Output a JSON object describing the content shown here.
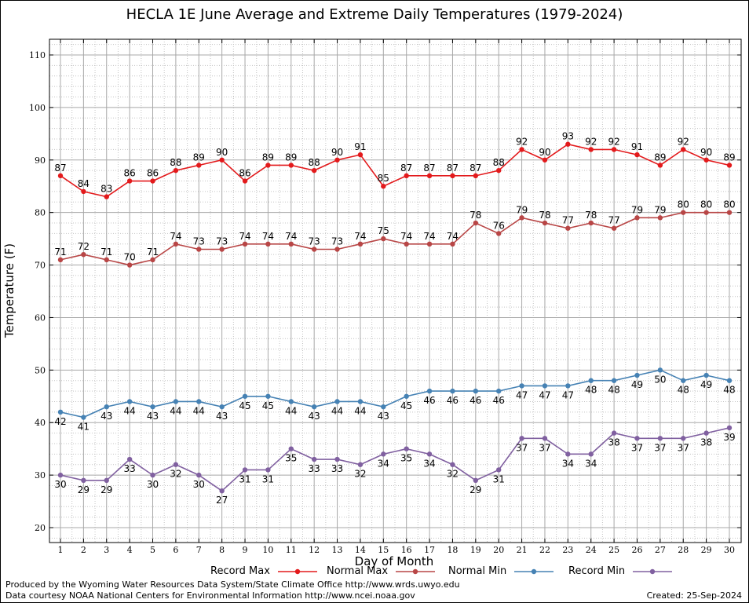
{
  "chart_data": {
    "type": "line",
    "title": "HECLA 1E June Average and Extreme Daily Temperatures (1979-2024)",
    "xlabel": "Day of Month",
    "ylabel": "Temperature (F)",
    "x": [
      1,
      2,
      3,
      4,
      5,
      6,
      7,
      8,
      9,
      10,
      11,
      12,
      13,
      14,
      15,
      16,
      17,
      18,
      19,
      20,
      21,
      22,
      23,
      24,
      25,
      26,
      27,
      28,
      29,
      30
    ],
    "xlim": [
      0.5,
      30.5
    ],
    "ylim": [
      17,
      112
    ],
    "yticks": [
      20,
      30,
      40,
      50,
      60,
      70,
      80,
      90,
      100,
      110
    ],
    "grid": true,
    "legend_position": "bottom",
    "series": [
      {
        "name": "Record Max",
        "color": "#e31a1c",
        "values": [
          87,
          84,
          83,
          86,
          86,
          88,
          89,
          90,
          86,
          89,
          89,
          88,
          90,
          91,
          85,
          87,
          87,
          87,
          87,
          88,
          92,
          90,
          93,
          92,
          92,
          91,
          89,
          92,
          90,
          89
        ]
      },
      {
        "name": "Normal Max",
        "color": "#b84646",
        "values": [
          71,
          72,
          71,
          70,
          71,
          74,
          73,
          73,
          74,
          74,
          74,
          73,
          73,
          74,
          75,
          74,
          74,
          74,
          78,
          76,
          79,
          78,
          77,
          78,
          77,
          79,
          79,
          80,
          80,
          80
        ]
      },
      {
        "name": "Normal Min",
        "color": "#4682b4",
        "values": [
          42,
          41,
          43,
          44,
          43,
          44,
          44,
          43,
          45,
          45,
          44,
          43,
          44,
          44,
          43,
          45,
          46,
          46,
          46,
          46,
          47,
          47,
          47,
          48,
          48,
          49,
          50,
          48,
          49,
          48
        ]
      },
      {
        "name": "Record Min",
        "color": "#8060a0",
        "values": [
          30,
          29,
          29,
          33,
          30,
          32,
          30,
          27,
          31,
          31,
          35,
          33,
          33,
          32,
          34,
          35,
          34,
          32,
          29,
          31,
          37,
          37,
          34,
          34,
          38,
          37,
          37,
          37,
          38,
          39
        ]
      }
    ]
  },
  "legend": {
    "record_max": "Record Max",
    "normal_max": "Normal Max",
    "normal_min": "Normal Min",
    "record_min": "Record Min"
  },
  "footer": {
    "produced_by": "Produced by the Wyoming Water Resources Data System/State Climate Office http://www.wrds.uwyo.edu",
    "data_courtesy": "Data courtesy NOAA National Centers for Environmental Information http://www.ncei.noaa.gov",
    "created": "Created:  25-Sep-2024"
  }
}
